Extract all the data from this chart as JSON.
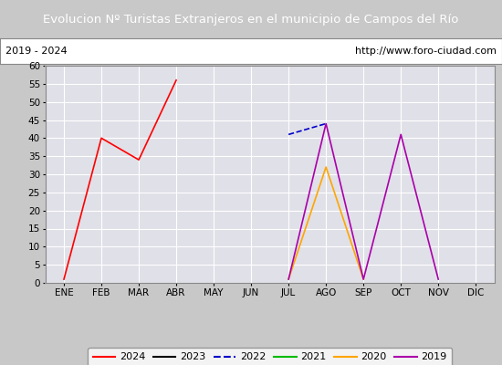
{
  "title": "Evolucion Nº Turistas Extranjeros en el municipio de Campos del Río",
  "subtitle_left": "2019 - 2024",
  "subtitle_right": "http://www.foro-ciudad.com",
  "months": [
    "ENE",
    "FEB",
    "MAR",
    "ABR",
    "MAY",
    "JUN",
    "JUL",
    "AGO",
    "SEP",
    "OCT",
    "NOV",
    "DIC"
  ],
  "series": {
    "2024": {
      "color": "#ff0000",
      "linestyle": "-",
      "data": [
        1,
        40,
        34,
        56,
        null,
        null,
        null,
        null,
        null,
        null,
        null,
        null
      ]
    },
    "2023": {
      "color": "#000000",
      "linestyle": "-",
      "data": [
        null,
        null,
        null,
        null,
        null,
        null,
        null,
        null,
        null,
        null,
        null,
        null
      ]
    },
    "2022": {
      "color": "#0000cc",
      "linestyle": "--",
      "data": [
        null,
        null,
        null,
        null,
        null,
        null,
        41,
        44,
        null,
        null,
        null,
        null
      ]
    },
    "2021": {
      "color": "#00bb00",
      "linestyle": "-",
      "data": [
        null,
        null,
        null,
        null,
        null,
        null,
        null,
        null,
        null,
        null,
        null,
        null
      ]
    },
    "2020": {
      "color": "#ffa500",
      "linestyle": "-",
      "data": [
        null,
        null,
        null,
        null,
        null,
        null,
        1,
        32,
        1,
        null,
        null,
        null
      ]
    },
    "2019": {
      "color": "#aa00aa",
      "linestyle": "-",
      "data": [
        null,
        null,
        null,
        null,
        null,
        null,
        1,
        44,
        1,
        41,
        1,
        null
      ]
    }
  },
  "ylim": [
    0,
    60
  ],
  "yticks": [
    0,
    5,
    10,
    15,
    20,
    25,
    30,
    35,
    40,
    45,
    50,
    55,
    60
  ],
  "title_bg": "#4472c4",
  "title_color": "#ffffff",
  "subtitle_bg": "#ffffff",
  "subtitle_color": "#000000",
  "plot_bg": "#e0e0e8",
  "grid_color": "#ffffff",
  "legend_order": [
    "2024",
    "2023",
    "2022",
    "2021",
    "2020",
    "2019"
  ],
  "fig_width": 5.5,
  "fig_height": 4.0,
  "dpi": 100
}
